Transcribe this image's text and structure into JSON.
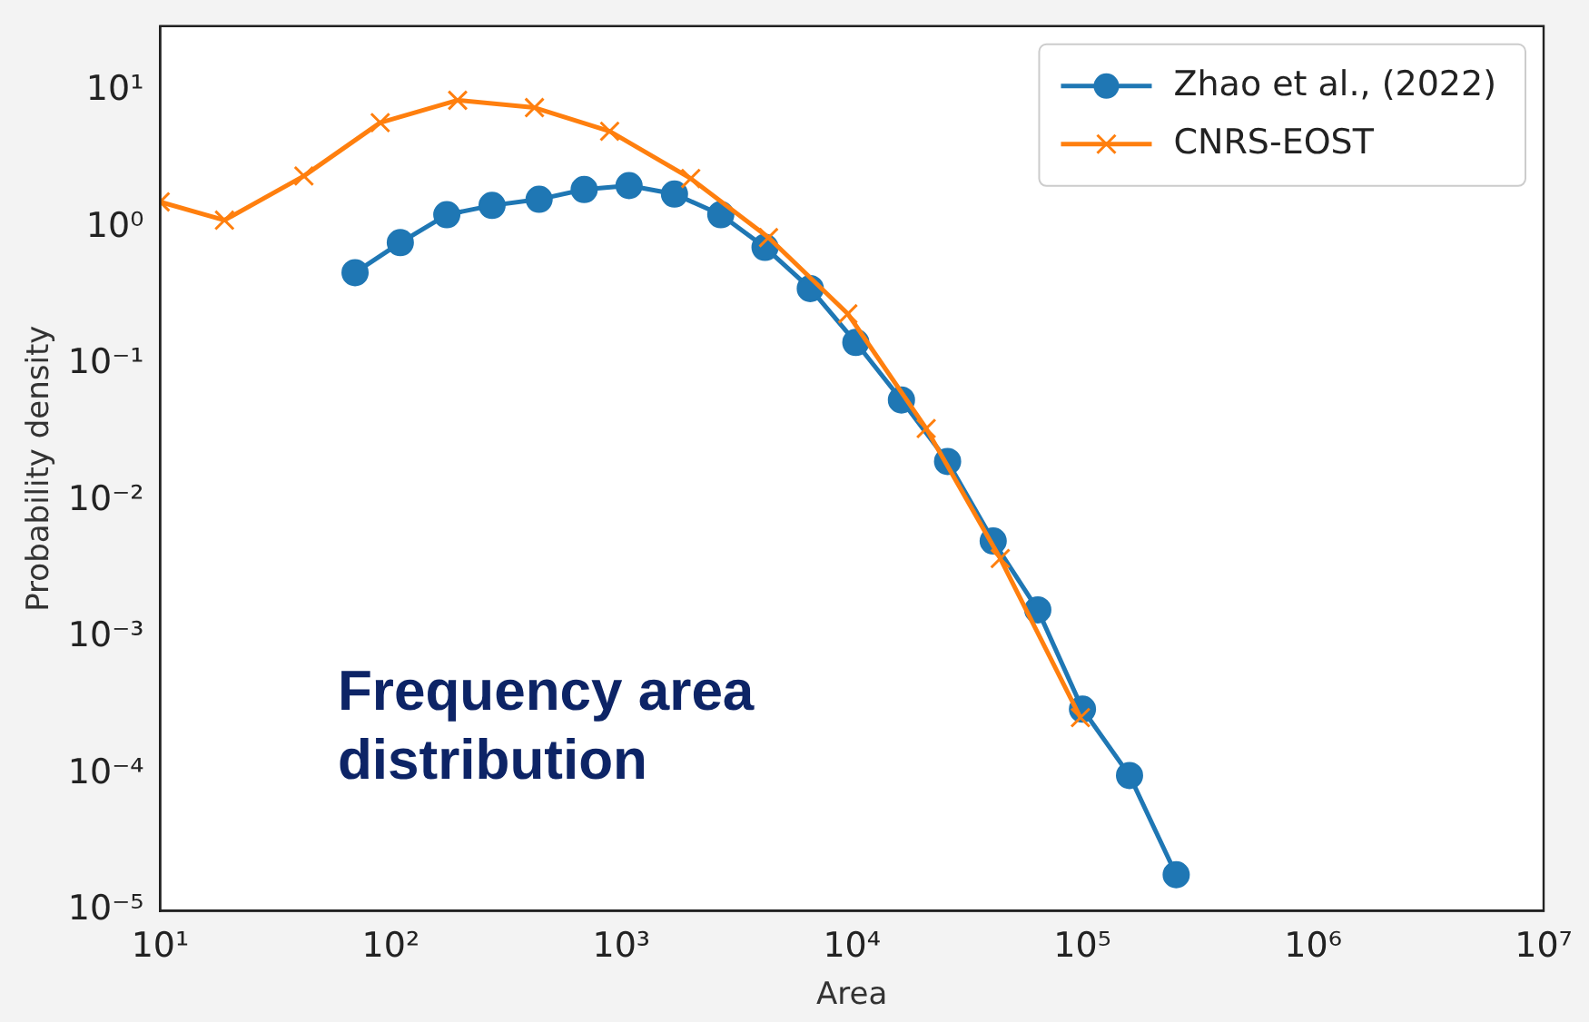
{
  "chart_data": {
    "type": "line",
    "xlabel": "Area",
    "ylabel": "Probability density",
    "log": "xy",
    "grid": false,
    "legend": "top right",
    "xlim": [
      10,
      10000000
    ],
    "ylim": [
      1e-05,
      30
    ],
    "xticks": [
      {
        "value": 10,
        "label": "10¹"
      },
      {
        "value": 100,
        "label": "10²"
      },
      {
        "value": 1000,
        "label": "10³"
      },
      {
        "value": 10000,
        "label": "10⁴"
      },
      {
        "value": 100000,
        "label": "10⁵"
      },
      {
        "value": 1000000,
        "label": "10⁶"
      },
      {
        "value": 10000000,
        "label": "10⁷"
      }
    ],
    "yticks": [
      {
        "value": 1e-05,
        "label": "10⁻⁵"
      },
      {
        "value": 0.0001,
        "label": "10⁻⁴"
      },
      {
        "value": 0.001,
        "label": "10⁻³"
      },
      {
        "value": 0.01,
        "label": "10⁻²"
      },
      {
        "value": 0.1,
        "label": "10⁻¹"
      },
      {
        "value": 1,
        "label": "10⁰"
      },
      {
        "value": 10,
        "label": "10¹"
      }
    ],
    "annotations": [
      "Frequency area distribution"
    ],
    "series": [
      {
        "name": "Zhao et al., (2022)",
        "color": "#1f77b4",
        "marker": "circle",
        "line_style": "solid",
        "x": [
          70,
          110,
          175,
          275,
          440,
          690,
          1080,
          1700,
          2700,
          4200,
          6600,
          10400,
          16400,
          26000,
          41000,
          64000,
          100000,
          160000,
          255000
        ],
        "values": [
          0.47,
          0.78,
          1.25,
          1.46,
          1.62,
          1.91,
          2.04,
          1.77,
          1.25,
          0.72,
          0.36,
          0.145,
          0.055,
          0.0195,
          0.0051,
          0.0016,
          0.0003,
          9.8e-05,
          1.84e-05
        ]
      },
      {
        "name": "CNRS-EOST",
        "color": "#ff7f0e",
        "marker": "cross",
        "line_style": "solid",
        "x": [
          10,
          19,
          42,
          90,
          195,
          420,
          890,
          2000,
          4350,
          9600,
          21000,
          44000,
          98000
        ],
        "values": [
          1.55,
          1.14,
          2.4,
          5.9,
          8.6,
          7.6,
          5.1,
          2.3,
          0.85,
          0.235,
          0.034,
          0.0038,
          0.00026
        ]
      }
    ]
  }
}
